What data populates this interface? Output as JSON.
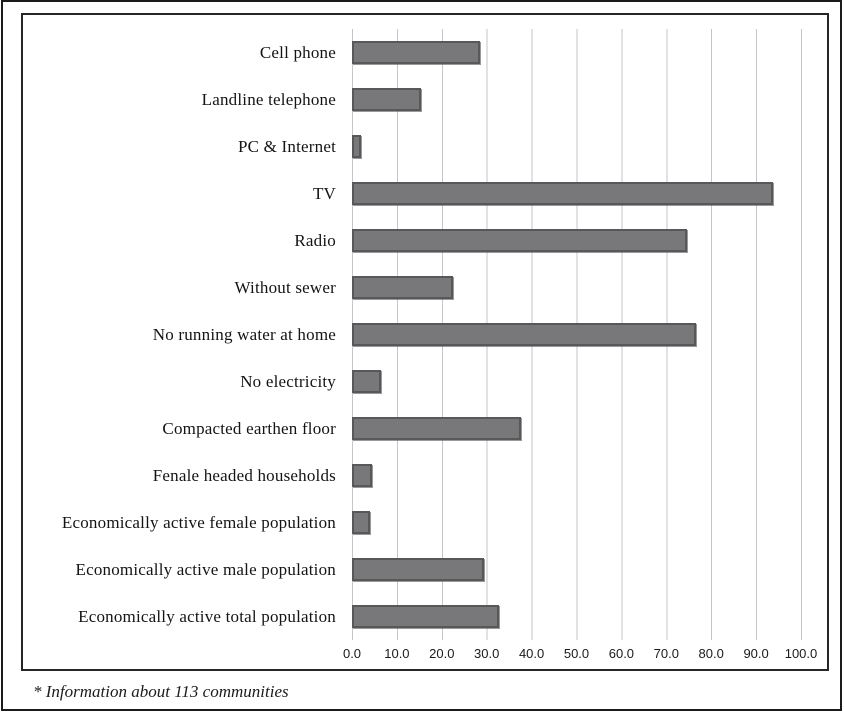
{
  "figure": {
    "footnote": "* Information about 113 communities",
    "colors": {
      "bar_fill": "#78787a",
      "bar_border": "#58585a",
      "gridline": "#c6c6c6",
      "frame_border": "#262626",
      "outer_border": "#1a1a1a"
    }
  },
  "chart_data": {
    "type": "bar",
    "orientation": "horizontal",
    "title": "",
    "xlabel": "",
    "ylabel": "",
    "grid": "vertical gridlines every 10 units",
    "legend": "none",
    "xlim": [
      0,
      100
    ],
    "x_tick_labels": [
      "0.0",
      "10.0",
      "20.0",
      "30.0",
      "40.0",
      "50.0",
      "60.0",
      "70.0",
      "80.0",
      "90.0",
      "100.0"
    ],
    "categories": [
      "Cell phone",
      "Landline telephone",
      "PC & Internet",
      "TV",
      "Radio",
      "Without sewer",
      "No running water at home",
      "No electricity",
      "Compacted earthen floor",
      "Fenale headed households",
      "Economically active female population",
      "Economically active male population",
      "Economically active total population"
    ],
    "values": [
      28.6,
      15.3,
      2.0,
      93.8,
      74.6,
      22.5,
      76.7,
      6.4,
      37.7,
      4.4,
      4.0,
      29.4,
      32.7
    ]
  }
}
